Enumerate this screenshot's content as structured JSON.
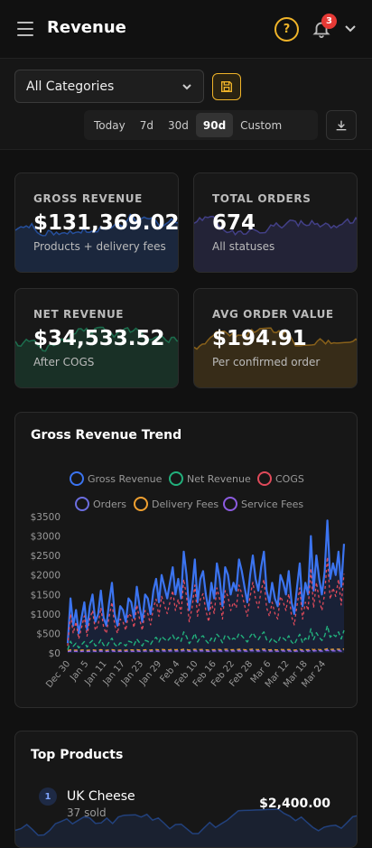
{
  "header": {
    "title": "Revenue",
    "notification_count": "3",
    "help_label": "?"
  },
  "filters": {
    "category": "All Categories",
    "ranges": [
      "Today",
      "7d",
      "30d",
      "90d",
      "Custom"
    ],
    "active_range": "90d"
  },
  "kpis": [
    {
      "label": "GROSS REVENUE",
      "value": "$131,369.02",
      "sub": "Products + delivery fees",
      "color": "#2f6fe8"
    },
    {
      "label": "TOTAL ORDERS",
      "value": "674",
      "sub": "All statuses",
      "color": "#5b57c7"
    },
    {
      "label": "NET REVENUE",
      "value": "$34,533.52",
      "sub": "After COGS",
      "color": "#1f9e6c"
    },
    {
      "label": "AVG ORDER VALUE",
      "value": "$194.91",
      "sub": "Per confirmed order",
      "color": "#c88a1c"
    }
  ],
  "chart": {
    "title": "Gross Revenue Trend",
    "legend": [
      {
        "name": "Gross Revenue",
        "color": "#3b74f0"
      },
      {
        "name": "Net Revenue",
        "color": "#22b07c"
      },
      {
        "name": "COGS",
        "color": "#e04a5a"
      },
      {
        "name": "Orders",
        "color": "#6c6ee0"
      },
      {
        "name": "Delivery Fees",
        "color": "#f0a030"
      },
      {
        "name": "Service Fees",
        "color": "#8c5be0"
      }
    ]
  },
  "chart_data": {
    "type": "line",
    "title": "Gross Revenue Trend",
    "ylim": [
      0,
      3500
    ],
    "y_ticks": [
      "$0",
      "$500",
      "$1000",
      "$1500",
      "$2000",
      "$2500",
      "$3000",
      "$3500"
    ],
    "x_ticks": [
      "Dec 30",
      "Jan 5",
      "Jan 11",
      "Jan 17",
      "Jan 23",
      "Jan 29",
      "Feb 4",
      "Feb 10",
      "Feb 16",
      "Feb 22",
      "Feb 28",
      "Mar 6",
      "Mar 12",
      "Mar 18",
      "Mar 24"
    ],
    "series": [
      {
        "name": "Gross Revenue",
        "values": [
          250,
          1400,
          700,
          1100,
          500,
          900,
          1300,
          600,
          1200,
          1500,
          800,
          1000,
          1600,
          900,
          700,
          1300,
          1800,
          1000,
          700,
          1200,
          1100,
          800,
          1400,
          1300,
          900,
          1700,
          1200,
          800,
          1500,
          1400,
          1000,
          1600,
          1900,
          1300,
          2000,
          1700,
          1400,
          1800,
          2200,
          1500,
          1900,
          1400,
          2600,
          2000,
          1100,
          1600,
          2400,
          1300,
          1900,
          2100,
          1500,
          1100,
          1800,
          1400,
          2300,
          1900,
          1200,
          2200,
          2000,
          1500,
          1800,
          1600,
          2400,
          2100,
          1700,
          1300,
          2000,
          2500,
          1900,
          1600,
          2200,
          2600,
          1600,
          1300,
          1800,
          1400,
          1200,
          2000,
          1800,
          1500,
          2100,
          1300,
          1000,
          1700,
          2300,
          1200,
          1800,
          1500,
          3000,
          1600,
          2500,
          1900,
          1500,
          2100,
          3400,
          1900,
          2300,
          2000,
          2600,
          1700,
          2800
        ]
      },
      {
        "name": "COGS",
        "values": [
          180,
          1000,
          500,
          800,
          360,
          650,
          950,
          430,
          870,
          1090,
          580,
          720,
          1160,
          650,
          500,
          940,
          1300,
          720,
          500,
          870,
          800,
          580,
          1010,
          940,
          650,
          1230,
          870,
          580,
          1090,
          1010,
          720,
          1160,
          1380,
          940,
          1450,
          1230,
          1010,
          1300,
          1600,
          1090,
          1380,
          1010,
          1890,
          1450,
          800,
          1160,
          1740,
          940,
          1380,
          1520,
          1090,
          800,
          1300,
          1010,
          1670,
          1380,
          870,
          1600,
          1450,
          1090,
          1300,
          1160,
          1740,
          1520,
          1230,
          940,
          1450,
          1810,
          1380,
          1160,
          1600,
          1890,
          1160,
          940,
          1300,
          1010,
          870,
          1450,
          1300,
          1090,
          1520,
          940,
          720,
          1230,
          1670,
          870,
          1300,
          1090,
          2170,
          1160,
          1810,
          1380,
          1090,
          1520,
          2460,
          1380,
          1670,
          1450,
          1890,
          1230,
          2030
        ]
      },
      {
        "name": "Net Revenue",
        "values": [
          80,
          300,
          170,
          250,
          130,
          210,
          290,
          150,
          260,
          320,
          180,
          220,
          340,
          200,
          160,
          280,
          380,
          220,
          160,
          260,
          240,
          180,
          300,
          280,
          200,
          360,
          260,
          180,
          320,
          300,
          220,
          340,
          400,
          280,
          420,
          360,
          300,
          380,
          460,
          320,
          400,
          300,
          540,
          420,
          240,
          340,
          500,
          280,
          400,
          440,
          320,
          240,
          380,
          300,
          480,
          400,
          260,
          460,
          420,
          320,
          380,
          340,
          500,
          440,
          360,
          280,
          420,
          520,
          400,
          340,
          460,
          540,
          340,
          280,
          380,
          300,
          260,
          420,
          380,
          320,
          440,
          280,
          220,
          360,
          480,
          260,
          380,
          320,
          620,
          340,
          520,
          400,
          320,
          440,
          700,
          400,
          480,
          420,
          540,
          360,
          580
        ]
      },
      {
        "name": "Orders",
        "values": [
          40,
          55,
          45,
          50,
          42,
          48,
          52,
          44,
          50,
          56,
          46,
          48,
          58,
          47,
          44,
          52,
          60,
          48,
          44,
          50,
          49,
          46,
          54,
          52,
          47,
          58,
          50,
          46,
          55,
          54,
          48,
          57,
          62,
          52,
          63,
          58,
          54,
          60,
          66,
          55,
          61,
          54,
          70,
          63,
          50,
          57,
          68,
          52,
          61,
          64,
          55,
          50,
          60,
          54,
          67,
          61,
          51,
          66,
          63,
          55,
          60,
          57,
          68,
          64,
          58,
          52,
          63,
          70,
          61,
          57,
          66,
          71,
          57,
          52,
          60,
          54,
          51,
          63,
          60,
          55,
          64,
          52,
          48,
          58,
          67,
          51,
          60,
          55,
          75,
          57,
          70,
          61,
          55,
          64,
          80,
          61,
          67,
          63,
          71,
          58,
          74
        ]
      },
      {
        "name": "Delivery Fees",
        "values": [
          60,
          80,
          70,
          75,
          65,
          72,
          78,
          68,
          74,
          82,
          70,
          72,
          84,
          71,
          68,
          78,
          86,
          72,
          68,
          74,
          73,
          70,
          80,
          78,
          71,
          84,
          74,
          70,
          81,
          80,
          72,
          83,
          88,
          78,
          90,
          84,
          80,
          86,
          94,
          81,
          88,
          80,
          98,
          90,
          74,
          83,
          96,
          78,
          88,
          91,
          81,
          74,
          86,
          80,
          95,
          88,
          76,
          94,
          90,
          81,
          86,
          83,
          96,
          91,
          84,
          78,
          90,
          99,
          88,
          83,
          94,
          100,
          83,
          78,
          86,
          80,
          76,
          90,
          86,
          81,
          91,
          78,
          72,
          84,
          95,
          76,
          86,
          81,
          104,
          83,
          99,
          88,
          81,
          91,
          110,
          88,
          95,
          90,
          100,
          84,
          104
        ]
      },
      {
        "name": "Service Fees",
        "values": [
          30,
          42,
          36,
          38,
          32,
          37,
          40,
          34,
          38,
          43,
          36,
          37,
          44,
          36,
          34,
          40,
          46,
          37,
          34,
          38,
          38,
          36,
          42,
          40,
          36,
          44,
          38,
          36,
          42,
          42,
          37,
          44,
          47,
          40,
          48,
          44,
          42,
          46,
          50,
          42,
          47,
          42,
          53,
          48,
          38,
          44,
          52,
          40,
          47,
          49,
          42,
          38,
          46,
          42,
          51,
          47,
          39,
          50,
          48,
          42,
          46,
          44,
          52,
          49,
          44,
          40,
          48,
          54,
          47,
          44,
          50,
          55,
          44,
          40,
          46,
          42,
          39,
          48,
          46,
          42,
          49,
          40,
          37,
          44,
          51,
          39,
          46,
          42,
          57,
          44,
          54,
          47,
          42,
          49,
          60,
          47,
          51,
          48,
          55,
          44,
          57
        ]
      }
    ]
  },
  "products": {
    "title": "Top Products",
    "items": [
      {
        "rank": "1",
        "name": "UK Cheese",
        "sub": "37 sold",
        "value": "$2,400.00"
      }
    ]
  }
}
